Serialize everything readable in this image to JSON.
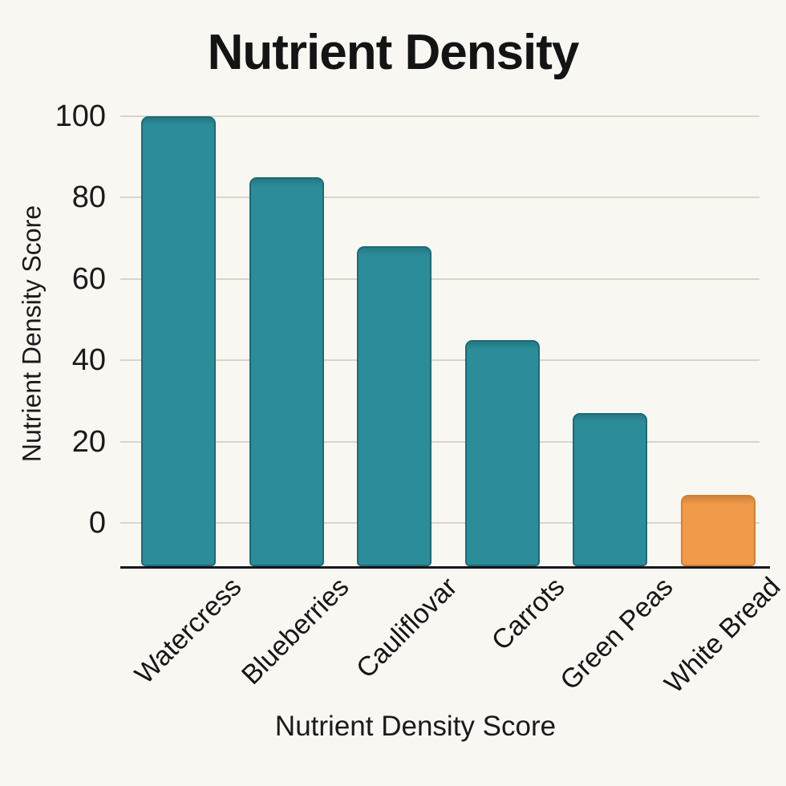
{
  "chart_data": {
    "type": "bar",
    "title": "Nutrient Density",
    "xlabel": "Nutrient Density Score",
    "ylabel": "Nutrient Density Score",
    "categories": [
      "Watercress",
      "Blueberries",
      "Cauliflovar",
      "Carrots",
      "Green Peas",
      "White Bread"
    ],
    "values": [
      100,
      85,
      68,
      45,
      27,
      7
    ],
    "bar_colors": [
      "#2b8d99",
      "#2b8d99",
      "#2b8d99",
      "#2b8d99",
      "#2b8d99",
      "#f09a4a"
    ],
    "bar_border_colors": [
      "#1d6a75",
      "#1d6a75",
      "#1d6a75",
      "#1d6a75",
      "#1d6a75",
      "#d2802e"
    ],
    "highlight_category": "White Bread",
    "yticks": [
      0,
      20,
      40,
      60,
      80,
      100
    ],
    "ylim": [
      0,
      100
    ],
    "grid": "horizontal",
    "legend": "none",
    "x_tick_rotation_deg": 45
  },
  "colors": {
    "background": "#f9f7f1",
    "gridline": "#d8d4cc",
    "axis_line": "#16161c",
    "text": "#161616"
  }
}
